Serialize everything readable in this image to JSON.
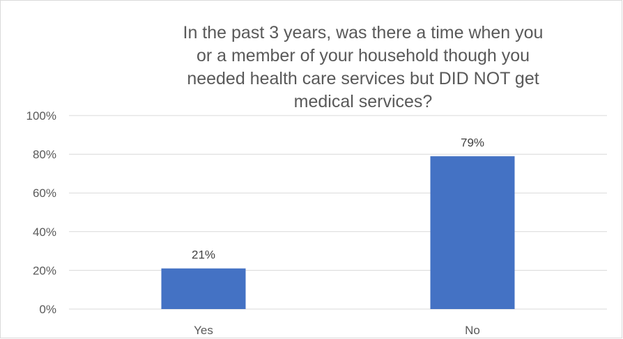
{
  "chart_data": {
    "type": "bar",
    "title": "In the past 3 years, was there a time when you or a member of your household though you needed health care services but DID NOT get medical services?",
    "categories": [
      "Yes",
      "No"
    ],
    "values": [
      21,
      79
    ],
    "data_labels": [
      "21%",
      "79%"
    ],
    "ylim": [
      0,
      100
    ],
    "y_ticks": [
      "0%",
      "20%",
      "40%",
      "60%",
      "80%",
      "100%"
    ],
    "xlabel": "",
    "ylabel": "",
    "grid": true,
    "legend": "none",
    "bar_color": "#4472C4",
    "gridline_color": "#D9D9D9"
  }
}
